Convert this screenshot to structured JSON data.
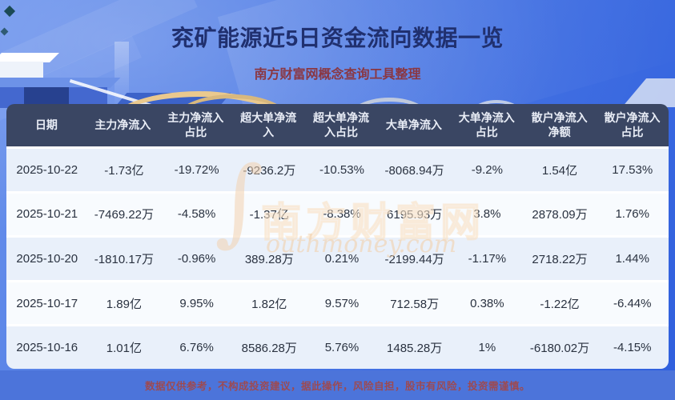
{
  "page": {
    "disclaimer": "数据仅供参考，不构成投资建议，据此操作，风险自担，股市有风险，投资需谨慎。"
  },
  "watermark": {
    "symbol": "∫",
    "cn": "南方财富网",
    "en": "outhmoney.com"
  },
  "chart_data": {
    "type": "table",
    "title": "兖矿能源近5日资金流向数据一览",
    "subtitle": "南方财富网概念查询工具整理",
    "columns": [
      "日期",
      "主力净流入",
      "主力净流入占比",
      "超大单净流入",
      "超大单净流入占比",
      "大单净流入",
      "大单净流入占比",
      "散户净流入净额",
      "散户净流入占比"
    ],
    "rows": [
      [
        "2025-10-22",
        "-1.73亿",
        "-19.72%",
        "-9236.2万",
        "-10.53%",
        "-8068.94万",
        "-9.2%",
        "1.54亿",
        "17.53%"
      ],
      [
        "2025-10-21",
        "-7469.22万",
        "-4.58%",
        "-1.37亿",
        "-8.38%",
        "6195.93万",
        "3.8%",
        "2878.09万",
        "1.76%"
      ],
      [
        "2025-10-20",
        "-1810.17万",
        "-0.96%",
        "389.28万",
        "0.21%",
        "-2199.44万",
        "-1.17%",
        "2718.22万",
        "1.44%"
      ],
      [
        "2025-10-17",
        "1.89亿",
        "9.95%",
        "1.82亿",
        "9.57%",
        "712.58万",
        "0.38%",
        "-1.22亿",
        "-6.44%"
      ],
      [
        "2025-10-16",
        "1.01亿",
        "6.76%",
        "8586.28万",
        "5.76%",
        "1485.28万",
        "1%",
        "-6180.02万",
        "-4.15%"
      ]
    ]
  },
  "colors": {
    "title_text": "#20306f",
    "accent_red": "#8a3742",
    "header_bg": "#3a4663",
    "row_odd": "#e9f0fa",
    "row_even": "#f8fbfe",
    "footer_bg": "#4c74da",
    "gold_arc": "#e9c98e",
    "background_blue": "#4d7ae4"
  }
}
